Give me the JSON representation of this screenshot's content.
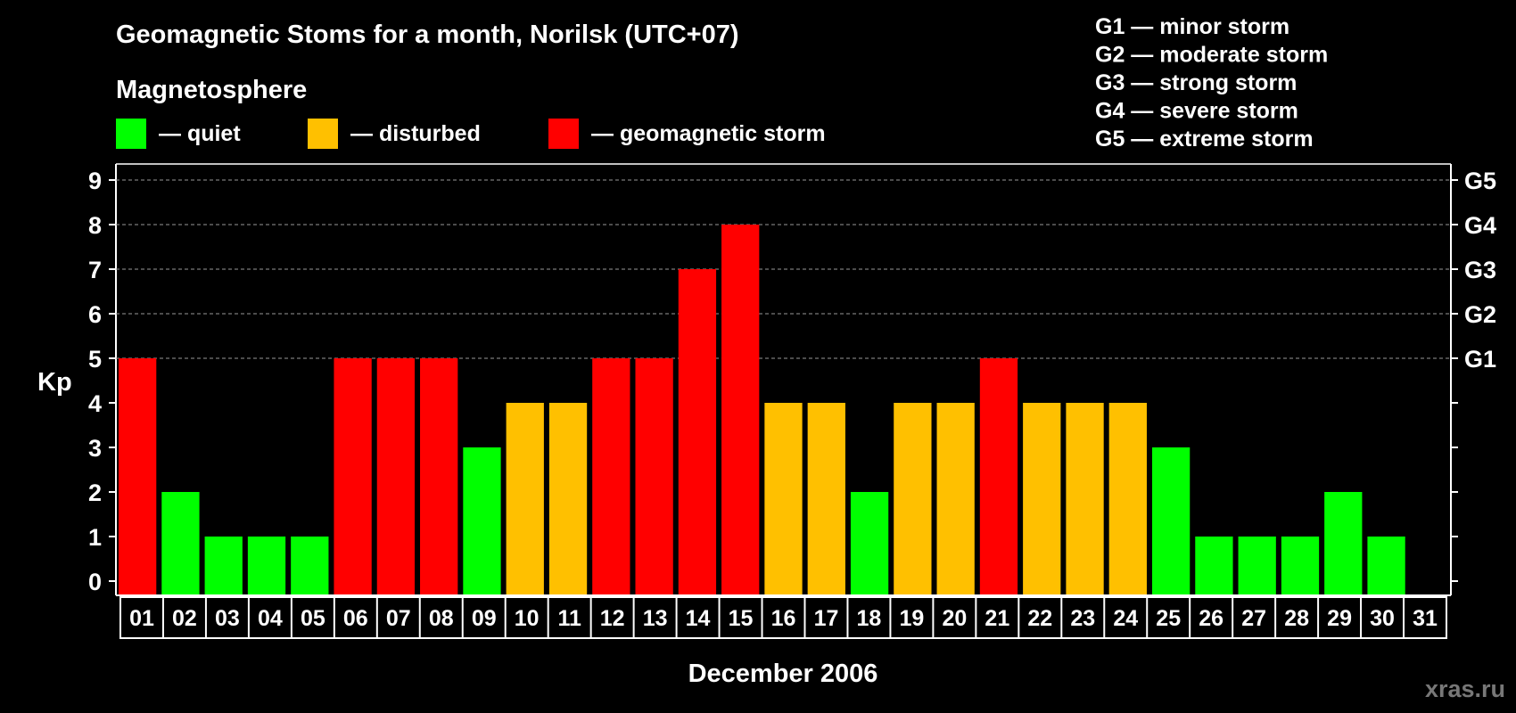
{
  "chart_data": {
    "type": "bar",
    "title": "Geomagnetic Stoms for a month, Norilsk (UTC+07)",
    "legend_title": "Magnetosphere",
    "legend": [
      {
        "key": "quiet",
        "label": "— quiet",
        "color": "#00FF00"
      },
      {
        "key": "disturbed",
        "label": "— disturbed",
        "color": "#FFC000"
      },
      {
        "key": "storm",
        "label": "— geomagnetic storm",
        "color": "#FF0000"
      }
    ],
    "storm_scale_legend": [
      "G1 — minor storm",
      "G2 — moderate storm",
      "G3 — strong storm",
      "G4 — severe storm",
      "G5 — extreme storm"
    ],
    "ylabel": "Kp",
    "xlabel": "December 2006",
    "ylim": [
      0,
      9
    ],
    "yticks": [
      "0",
      "1",
      "2",
      "3",
      "4",
      "5",
      "6",
      "7",
      "8",
      "9"
    ],
    "right_axis_labels": [
      {
        "value": 5,
        "label": "G1"
      },
      {
        "value": 6,
        "label": "G2"
      },
      {
        "value": 7,
        "label": "G3"
      },
      {
        "value": 8,
        "label": "G4"
      },
      {
        "value": 9,
        "label": "G5"
      }
    ],
    "categories": [
      "01",
      "02",
      "03",
      "04",
      "05",
      "06",
      "07",
      "08",
      "09",
      "10",
      "11",
      "12",
      "13",
      "14",
      "15",
      "16",
      "17",
      "18",
      "19",
      "20",
      "21",
      "22",
      "23",
      "24",
      "25",
      "26",
      "27",
      "28",
      "29",
      "30",
      "31"
    ],
    "values": [
      5,
      2,
      1,
      1,
      1,
      5,
      5,
      5,
      3,
      4,
      4,
      5,
      5,
      7,
      8,
      4,
      4,
      2,
      4,
      4,
      5,
      4,
      4,
      4,
      3,
      1,
      1,
      1,
      2,
      1,
      null
    ],
    "grid": true
  },
  "watermark": "xras.ru"
}
